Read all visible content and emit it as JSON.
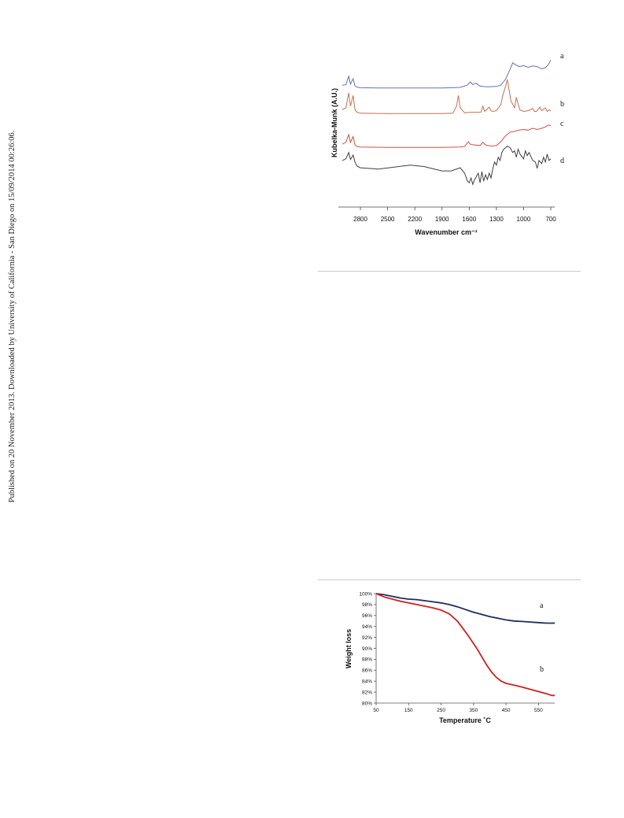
{
  "side_note": "Published on 20 November 2013. Downloaded by University of California - San Diego on 15/09/2014 00:26:06.",
  "chart_data": [
    {
      "type": "line",
      "xlabel": "Wavenumber cm⁻¹",
      "ylabel": "Kubelka-Munk (A.U.)",
      "x_ticks": [
        "2800",
        "2500",
        "2200",
        "1900",
        "1600",
        "1300",
        "1000",
        "700"
      ],
      "x_reversed": true,
      "xlim": [
        3000,
        700
      ],
      "series": [
        {
          "name": "a",
          "color": "#6470b8",
          "x": [
            3000,
            2960,
            2930,
            2910,
            2880,
            2860,
            2840,
            2800,
            2600,
            2200,
            1900,
            1700,
            1620,
            1590,
            1560,
            1520,
            1490,
            1450,
            1400,
            1300,
            1250,
            1200,
            1150,
            1120,
            1100,
            1050,
            1000,
            950,
            900,
            850,
            800,
            760,
            730,
            700
          ],
          "y": [
            0.12,
            0.13,
            0.4,
            0.15,
            0.32,
            0.1,
            0.06,
            0.04,
            0.03,
            0.03,
            0.03,
            0.05,
            0.12,
            0.22,
            0.14,
            0.18,
            0.1,
            0.08,
            0.07,
            0.08,
            0.12,
            0.3,
            0.62,
            0.82,
            0.78,
            0.7,
            0.73,
            0.68,
            0.72,
            0.7,
            0.63,
            0.67,
            0.75,
            0.9
          ]
        },
        {
          "name": "b",
          "color": "#c87050",
          "x": [
            3000,
            2960,
            2930,
            2910,
            2880,
            2860,
            2840,
            2800,
            2500,
            2200,
            1900,
            1780,
            1740,
            1720,
            1700,
            1650,
            1600,
            1470,
            1450,
            1430,
            1380,
            1360,
            1340,
            1300,
            1250,
            1230,
            1200,
            1180,
            1160,
            1140,
            1100,
            1080,
            1060,
            1040,
            1000,
            950,
            900,
            880,
            860,
            820,
            800,
            760,
            740,
            720,
            700
          ],
          "y": [
            0.15,
            0.2,
            0.62,
            0.25,
            0.55,
            0.15,
            0.08,
            0.05,
            0.04,
            0.04,
            0.04,
            0.05,
            0.25,
            0.55,
            0.2,
            0.06,
            0.07,
            0.08,
            0.25,
            0.1,
            0.22,
            0.12,
            0.1,
            0.12,
            0.3,
            0.55,
            0.8,
            1.0,
            0.7,
            0.4,
            0.2,
            0.5,
            0.3,
            0.14,
            0.1,
            0.12,
            0.18,
            0.1,
            0.1,
            0.22,
            0.12,
            0.2,
            0.1,
            0.14,
            0.12
          ]
        },
        {
          "name": "c",
          "color": "#d05040",
          "x": [
            3000,
            2960,
            2930,
            2910,
            2880,
            2860,
            2840,
            2800,
            2500,
            2200,
            1900,
            1700,
            1650,
            1610,
            1590,
            1560,
            1480,
            1450,
            1420,
            1400,
            1350,
            1300,
            1250,
            1200,
            1150,
            1100,
            1050,
            1000,
            950,
            900,
            850,
            800,
            760,
            730,
            700
          ],
          "y": [
            0.12,
            0.18,
            0.42,
            0.18,
            0.36,
            0.1,
            0.05,
            0.03,
            0.02,
            0.02,
            0.02,
            0.03,
            0.05,
            0.2,
            0.12,
            0.1,
            0.08,
            0.18,
            0.1,
            0.08,
            0.06,
            0.08,
            0.2,
            0.38,
            0.5,
            0.52,
            0.56,
            0.58,
            0.56,
            0.62,
            0.58,
            0.62,
            0.66,
            0.72,
            0.7
          ]
        },
        {
          "name": "d",
          "color": "#404040",
          "x": [
            3000,
            2960,
            2930,
            2910,
            2880,
            2860,
            2840,
            2800,
            2600,
            2400,
            2250,
            2100,
            1900,
            1800,
            1700,
            1650,
            1620,
            1600,
            1580,
            1560,
            1540,
            1520,
            1500,
            1480,
            1460,
            1440,
            1420,
            1400,
            1380,
            1360,
            1340,
            1320,
            1300,
            1280,
            1260,
            1240,
            1220,
            1200,
            1180,
            1150,
            1120,
            1100,
            1080,
            1060,
            1040,
            1000,
            980,
            960,
            940,
            900,
            870,
            850,
            830,
            800,
            780,
            760,
            740,
            720,
            700
          ],
          "y": [
            0.45,
            0.5,
            0.7,
            0.48,
            0.62,
            0.4,
            0.28,
            0.22,
            0.18,
            0.25,
            0.3,
            0.26,
            0.12,
            0.12,
            0.22,
            0.05,
            -0.2,
            -0.25,
            -0.1,
            -0.3,
            -0.15,
            -0.05,
            0.05,
            -0.25,
            0.1,
            -0.2,
            0.0,
            -0.15,
            0.05,
            -0.1,
            0.2,
            0.4,
            0.3,
            0.55,
            0.45,
            0.7,
            0.8,
            0.85,
            0.9,
            0.85,
            0.7,
            0.75,
            0.55,
            0.8,
            0.65,
            0.5,
            0.75,
            0.6,
            0.7,
            0.45,
            0.4,
            0.2,
            0.45,
            0.35,
            0.55,
            0.4,
            0.65,
            0.45,
            0.5
          ]
        }
      ]
    },
    {
      "type": "line",
      "xlabel": "Temperature ˚C",
      "ylabel": "Weight loss",
      "xlim": [
        50,
        600
      ],
      "ylim": [
        80,
        100
      ],
      "x_ticks": [
        50,
        150,
        250,
        350,
        450,
        550
      ],
      "y_ticks": [
        "100%",
        "98%",
        "96%",
        "94%",
        "92%",
        "90%",
        "88%",
        "86%",
        "84%",
        "82%",
        "80%"
      ],
      "series": [
        {
          "name": "a",
          "color": "#1f2d5c",
          "x": [
            50,
            75,
            100,
            125,
            150,
            175,
            200,
            225,
            250,
            275,
            300,
            325,
            350,
            375,
            400,
            425,
            450,
            475,
            500,
            525,
            550,
            575,
            600
          ],
          "y": [
            100,
            99.8,
            99.5,
            99.2,
            99.0,
            98.9,
            98.7,
            98.5,
            98.3,
            98.0,
            97.6,
            97.1,
            96.6,
            96.2,
            95.8,
            95.5,
            95.2,
            95.0,
            94.9,
            94.8,
            94.7,
            94.6,
            94.6
          ]
        },
        {
          "name": "b",
          "color": "#d02020",
          "x": [
            50,
            75,
            100,
            125,
            150,
            175,
            200,
            225,
            250,
            275,
            300,
            315,
            330,
            345,
            360,
            375,
            390,
            405,
            420,
            435,
            450,
            465,
            480,
            500,
            525,
            550,
            575,
            590,
            600
          ],
          "y": [
            100,
            99.4,
            99.0,
            98.6,
            98.3,
            98.0,
            97.7,
            97.4,
            97.0,
            96.3,
            95.0,
            93.8,
            92.6,
            91.3,
            90.0,
            88.5,
            87.0,
            85.7,
            84.7,
            84.0,
            83.6,
            83.4,
            83.2,
            82.9,
            82.5,
            82.1,
            81.7,
            81.4,
            81.4
          ]
        }
      ]
    }
  ]
}
